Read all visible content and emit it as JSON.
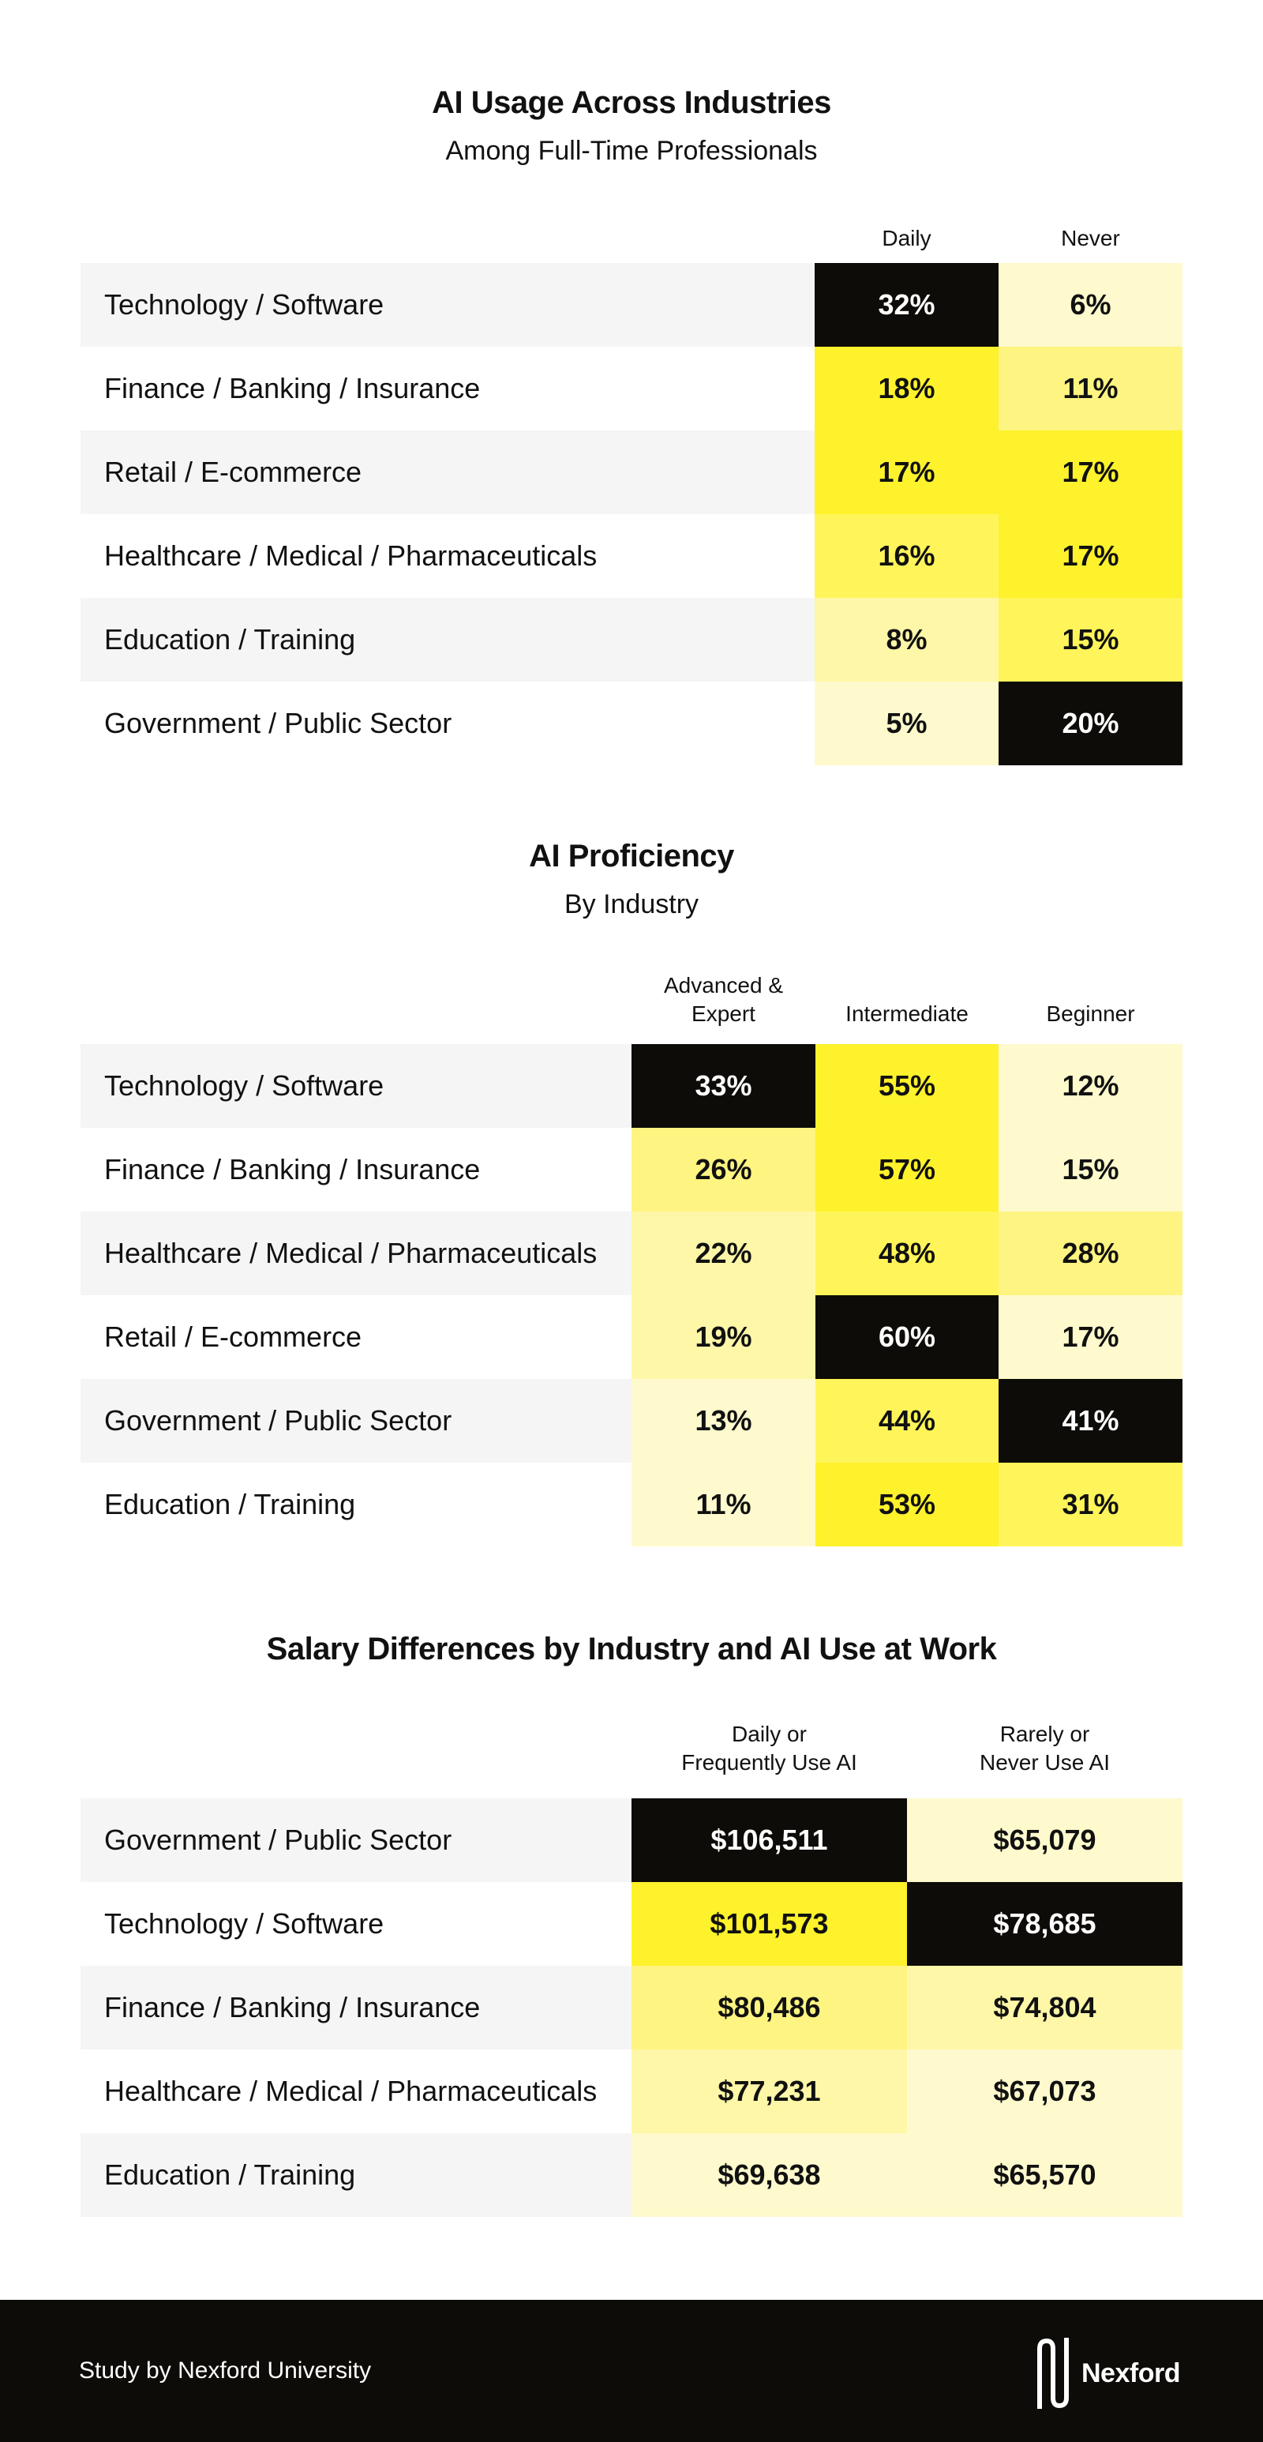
{
  "colors": {
    "scale": [
      "#fefacd",
      "#fef7a8",
      "#fef481",
      "#fff55a",
      "#fdf22b",
      "#0e0c08"
    ],
    "dark_text": "#ffffff",
    "light_text": "#111111"
  },
  "chart_data": [
    {
      "type": "heatmap",
      "title": "AI Usage Across Industries",
      "subtitle": "Among Full-Time Professionals",
      "columns": [
        "Daily",
        "Never"
      ],
      "rows": [
        {
          "label": "Technology / Software",
          "values": [
            "32%",
            "6%"
          ],
          "levels": [
            5,
            0
          ]
        },
        {
          "label": "Finance / Banking / Insurance",
          "values": [
            "18%",
            "11%"
          ],
          "levels": [
            4,
            2
          ]
        },
        {
          "label": "Retail / E-commerce",
          "values": [
            "17%",
            "17%"
          ],
          "levels": [
            4,
            4
          ]
        },
        {
          "label": "Healthcare / Medical / Pharmaceuticals",
          "values": [
            "16%",
            "17%"
          ],
          "levels": [
            3,
            4
          ]
        },
        {
          "label": "Education / Training",
          "values": [
            "8%",
            "15%"
          ],
          "levels": [
            1,
            3
          ]
        },
        {
          "label": "Government / Public Sector",
          "values": [
            "5%",
            "20%"
          ],
          "levels": [
            0,
            5
          ]
        }
      ]
    },
    {
      "type": "heatmap",
      "title": "AI Proficiency",
      "subtitle": "By Industry",
      "columns": [
        "Advanced &\nExpert",
        "Intermediate",
        "Beginner"
      ],
      "rows": [
        {
          "label": "Technology / Software",
          "values": [
            "33%",
            "55%",
            "12%"
          ],
          "levels": [
            5,
            4,
            0
          ]
        },
        {
          "label": "Finance / Banking / Insurance",
          "values": [
            "26%",
            "57%",
            "15%"
          ],
          "levels": [
            2,
            4,
            0
          ]
        },
        {
          "label": "Healthcare / Medical / Pharmaceuticals",
          "values": [
            "22%",
            "48%",
            "28%"
          ],
          "levels": [
            1,
            3,
            2
          ]
        },
        {
          "label": "Retail / E-commerce",
          "values": [
            "19%",
            "60%",
            "17%"
          ],
          "levels": [
            1,
            5,
            0
          ]
        },
        {
          "label": "Government / Public Sector",
          "values": [
            "13%",
            "44%",
            "41%"
          ],
          "levels": [
            0,
            3,
            5
          ]
        },
        {
          "label": "Education / Training",
          "values": [
            "11%",
            "53%",
            "31%"
          ],
          "levels": [
            0,
            4,
            3
          ]
        }
      ]
    },
    {
      "type": "heatmap",
      "title": "Salary Differences by Industry and AI Use at Work",
      "subtitle": "",
      "columns": [
        "Daily or\nFrequently Use AI",
        "Rarely or\nNever Use AI"
      ],
      "rows": [
        {
          "label": "Government / Public Sector",
          "values": [
            "$106,511",
            "$65,079"
          ],
          "levels": [
            5,
            0
          ]
        },
        {
          "label": "Technology / Software",
          "values": [
            "$101,573",
            "$78,685"
          ],
          "levels": [
            4,
            5
          ]
        },
        {
          "label": "Finance / Banking / Insurance",
          "values": [
            "$80,486",
            "$74,804"
          ],
          "levels": [
            2,
            1
          ]
        },
        {
          "label": "Healthcare / Medical / Pharmaceuticals",
          "values": [
            "$77,231",
            "$67,073"
          ],
          "levels": [
            1,
            0
          ]
        },
        {
          "label": "Education / Training",
          "values": [
            "$69,638",
            "$65,570"
          ],
          "levels": [
            0,
            0
          ]
        }
      ]
    }
  ],
  "footer": {
    "credit": "Study by Nexford University",
    "logo_text": "Nexford"
  }
}
